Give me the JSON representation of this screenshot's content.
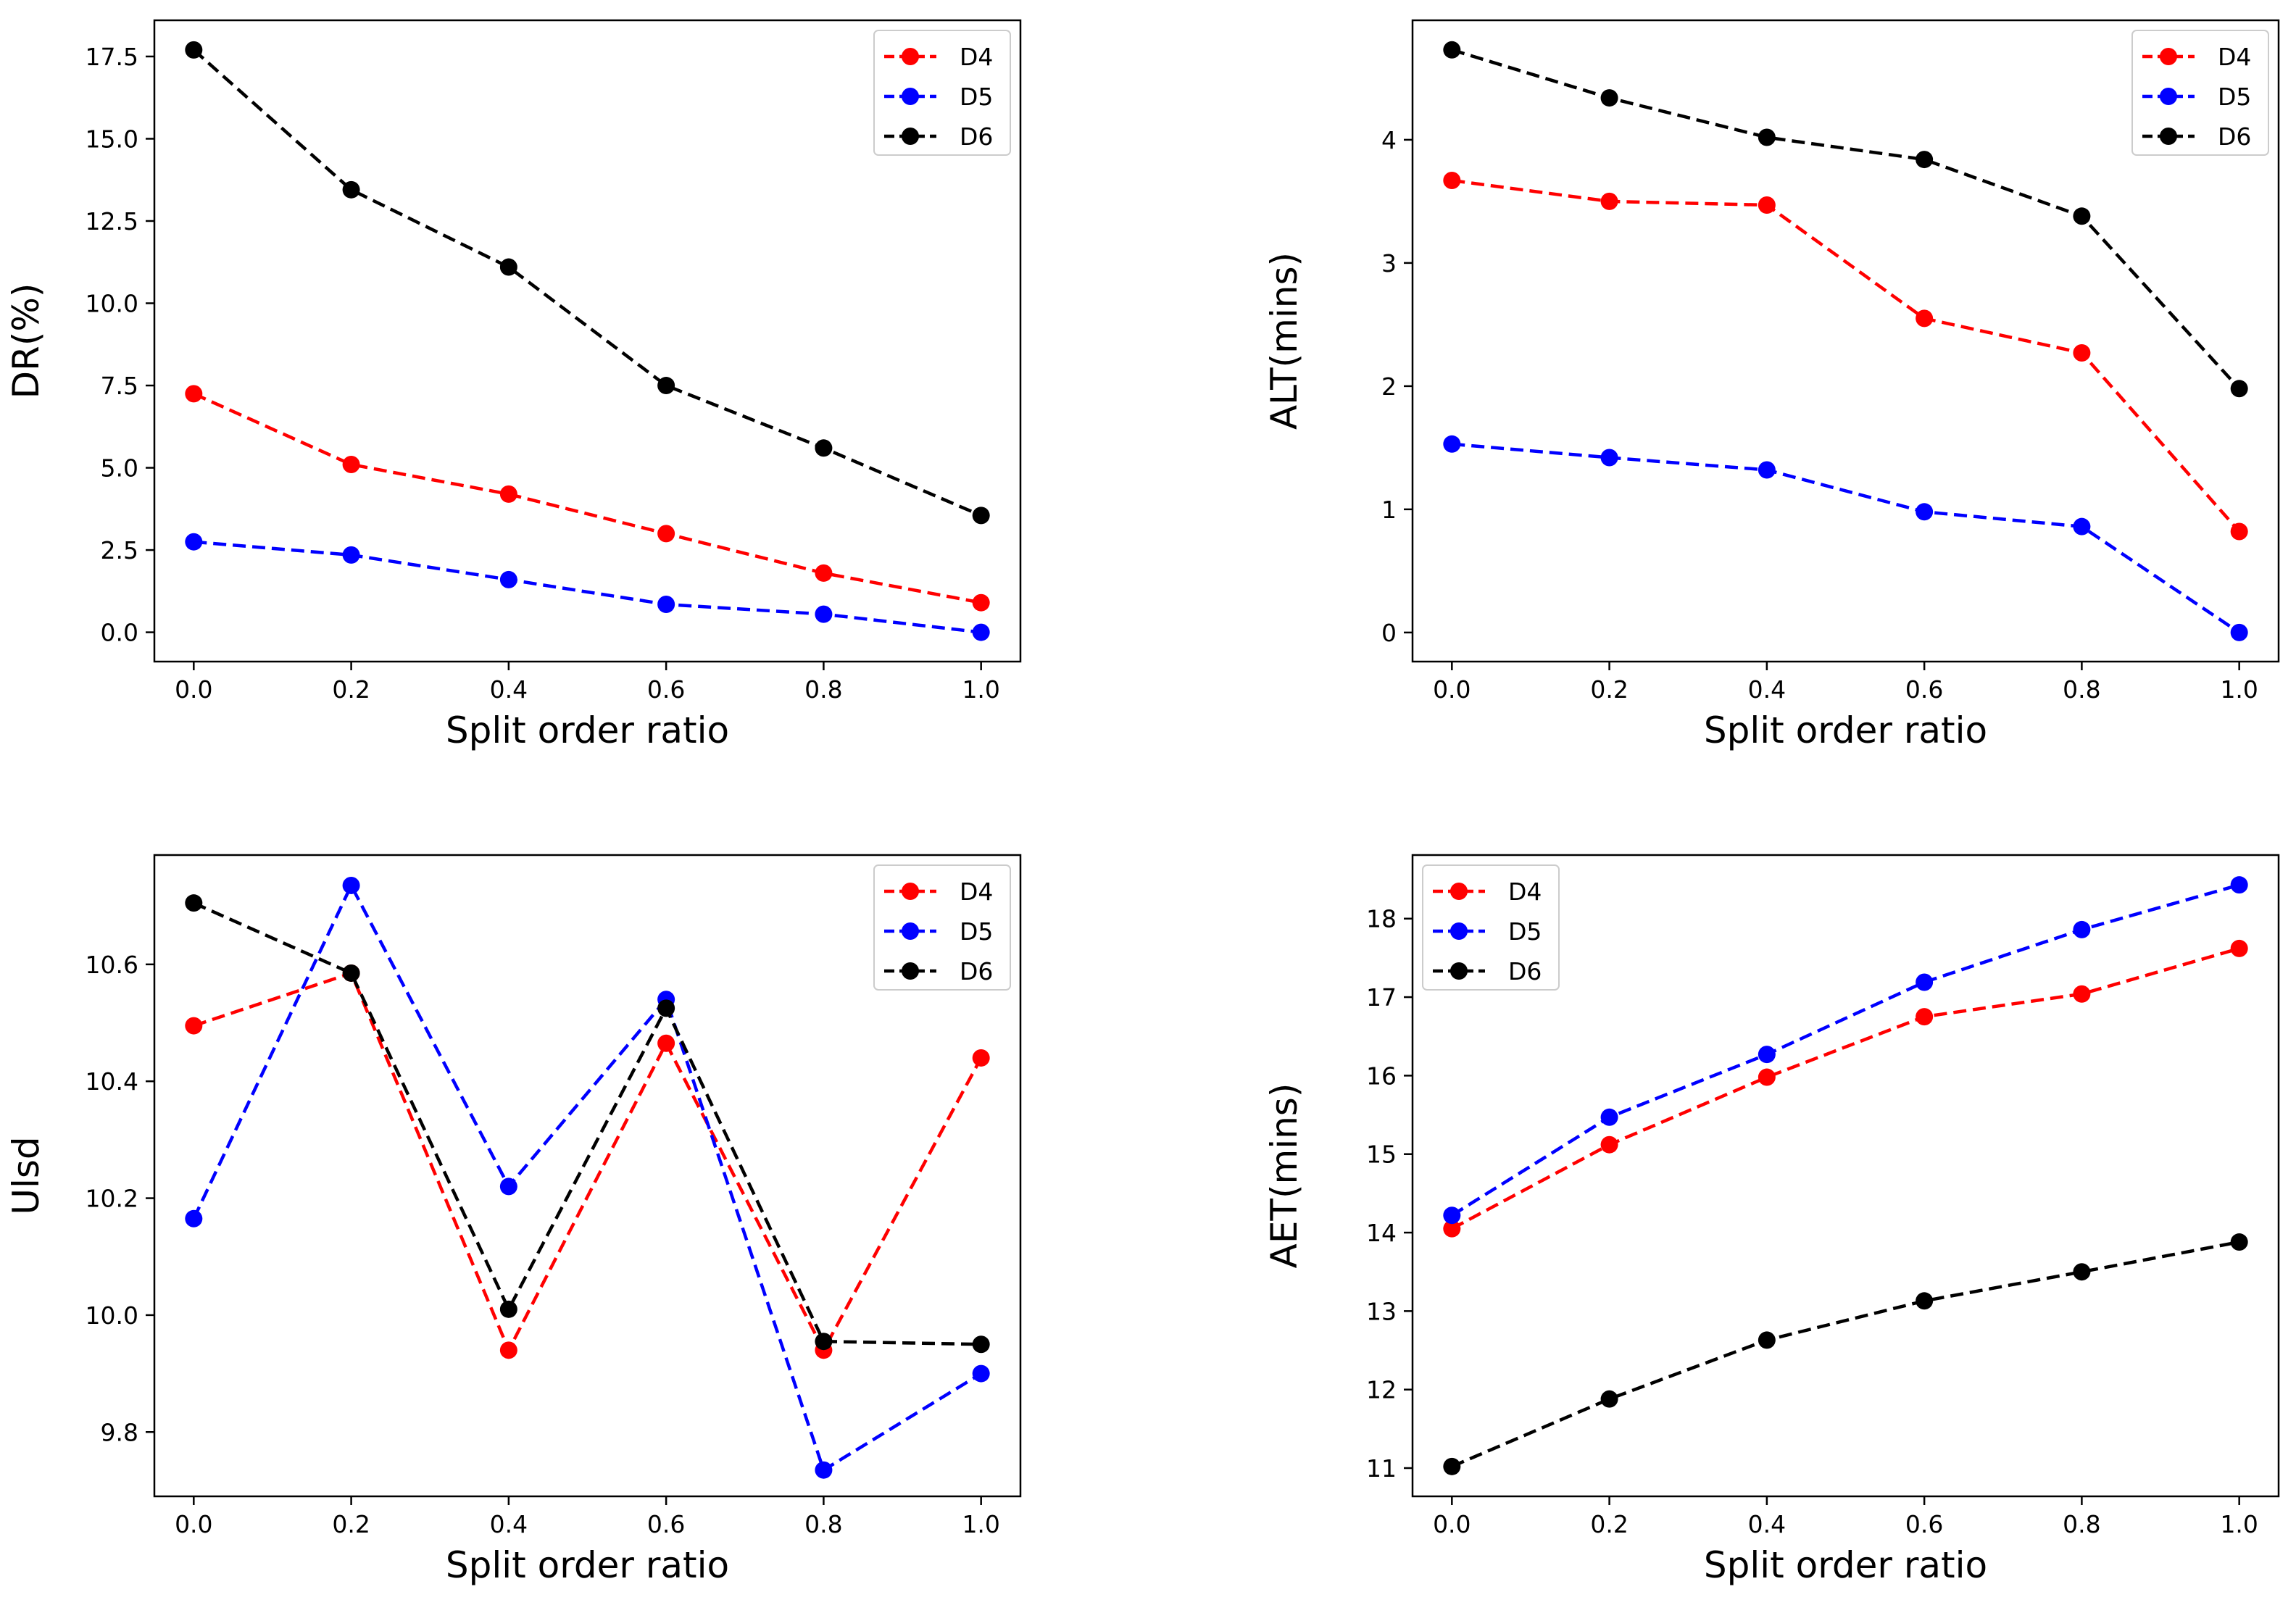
{
  "chart_data": [
    {
      "type": "line",
      "title": "",
      "xlabel": "Split order ratio",
      "ylabel": "DR(%)",
      "x": [
        0.0,
        0.2,
        0.4,
        0.6,
        0.8,
        1.0
      ],
      "xticks": [
        "0.0",
        "0.2",
        "0.4",
        "0.6",
        "0.8",
        "1.0"
      ],
      "yticks": [
        0.0,
        2.5,
        5.0,
        7.5,
        10.0,
        12.5,
        15.0,
        17.5
      ],
      "ytick_labels": [
        "0.0",
        "2.5",
        "5.0",
        "7.5",
        "10.0",
        "12.5",
        "15.0",
        "17.5"
      ],
      "xlim": [
        -0.05,
        1.05
      ],
      "ylim": [
        -0.89,
        18.6
      ],
      "legend": "top-right",
      "series": [
        {
          "name": "D4",
          "color": "#ff0000",
          "values": [
            7.25,
            5.1,
            4.2,
            3.0,
            1.8,
            0.9
          ]
        },
        {
          "name": "D5",
          "color": "#0000ff",
          "values": [
            2.75,
            2.35,
            1.6,
            0.85,
            0.55,
            0.0
          ]
        },
        {
          "name": "D6",
          "color": "#000000",
          "values": [
            17.7,
            13.45,
            11.1,
            7.5,
            5.6,
            3.55
          ]
        }
      ]
    },
    {
      "type": "line",
      "title": "",
      "xlabel": "Split order ratio",
      "ylabel": "ALT(mins)",
      "x": [
        0.0,
        0.2,
        0.4,
        0.6,
        0.8,
        1.0
      ],
      "xticks": [
        "0.0",
        "0.2",
        "0.4",
        "0.6",
        "0.8",
        "1.0"
      ],
      "yticks": [
        0,
        1,
        2,
        3,
        4
      ],
      "ytick_labels": [
        "0",
        "1",
        "2",
        "3",
        "4"
      ],
      "xlim": [
        -0.05,
        1.05
      ],
      "ylim": [
        -0.236,
        4.97
      ],
      "legend": "top-right",
      "series": [
        {
          "name": "D4",
          "color": "#ff0000",
          "values": [
            3.67,
            3.5,
            3.47,
            2.55,
            2.27,
            0.82
          ]
        },
        {
          "name": "D5",
          "color": "#0000ff",
          "values": [
            1.53,
            1.42,
            1.32,
            0.98,
            0.86,
            0.0
          ]
        },
        {
          "name": "D6",
          "color": "#000000",
          "values": [
            4.73,
            4.34,
            4.02,
            3.84,
            3.38,
            1.98
          ]
        }
      ]
    },
    {
      "type": "line",
      "title": "",
      "xlabel": "Split order ratio",
      "ylabel": "Ulsd",
      "x": [
        0.0,
        0.2,
        0.4,
        0.6,
        0.8,
        1.0
      ],
      "xticks": [
        "0.0",
        "0.2",
        "0.4",
        "0.6",
        "0.8",
        "1.0"
      ],
      "yticks": [
        9.8,
        10.0,
        10.2,
        10.4,
        10.6
      ],
      "ytick_labels": [
        "9.8",
        "10.0",
        "10.2",
        "10.4",
        "10.6"
      ],
      "xlim": [
        -0.05,
        1.05
      ],
      "ylim": [
        9.69,
        10.787
      ],
      "legend": "top-right",
      "series": [
        {
          "name": "D4",
          "color": "#ff0000",
          "values": [
            10.495,
            10.585,
            9.94,
            10.465,
            9.94,
            10.44
          ]
        },
        {
          "name": "D5",
          "color": "#0000ff",
          "values": [
            10.165,
            10.735,
            10.22,
            10.54,
            9.735,
            9.9
          ]
        },
        {
          "name": "D6",
          "color": "#000000",
          "values": [
            10.705,
            10.585,
            10.01,
            10.525,
            9.955,
            9.95
          ]
        }
      ]
    },
    {
      "type": "line",
      "title": "",
      "xlabel": "Split order ratio",
      "ylabel": "AET(mins)",
      "x": [
        0.0,
        0.2,
        0.4,
        0.6,
        0.8,
        1.0
      ],
      "xticks": [
        "0.0",
        "0.2",
        "0.4",
        "0.6",
        "0.8",
        "1.0"
      ],
      "yticks": [
        11,
        12,
        13,
        14,
        15,
        16,
        17,
        18
      ],
      "ytick_labels": [
        "11",
        "12",
        "13",
        "14",
        "15",
        "16",
        "17",
        "18"
      ],
      "xlim": [
        -0.05,
        1.05
      ],
      "ylim": [
        10.64,
        18.81
      ],
      "legend": "top-left",
      "series": [
        {
          "name": "D4",
          "color": "#ff0000",
          "values": [
            14.05,
            15.12,
            15.98,
            16.75,
            17.04,
            17.62
          ]
        },
        {
          "name": "D5",
          "color": "#0000ff",
          "values": [
            14.22,
            15.47,
            16.27,
            17.19,
            17.86,
            18.43
          ]
        },
        {
          "name": "D6",
          "color": "#000000",
          "values": [
            11.02,
            11.88,
            12.63,
            13.13,
            13.5,
            13.88
          ]
        }
      ]
    }
  ]
}
